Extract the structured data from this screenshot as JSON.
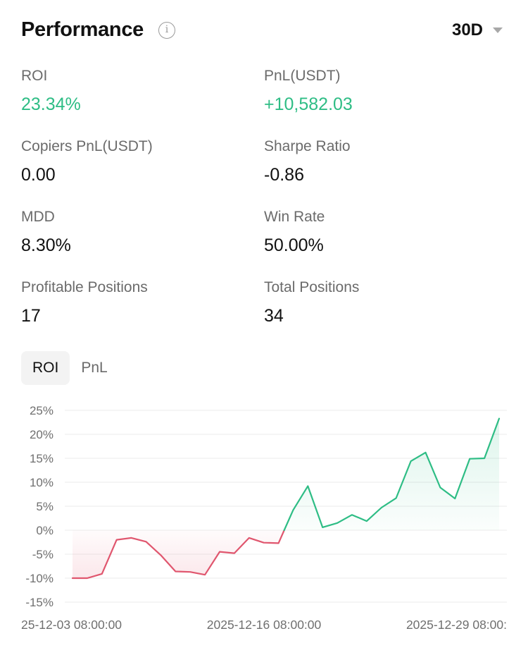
{
  "header": {
    "title": "Performance",
    "info_icon": "info-icon",
    "period": "30D",
    "period_icon": "caret-down-icon"
  },
  "stats": [
    {
      "label": "ROI",
      "value": "23.34%",
      "color": "#2ebd85"
    },
    {
      "label": "PnL(USDT)",
      "value": "+10,582.03",
      "color": "#2ebd85"
    },
    {
      "label": "Copiers PnL(USDT)",
      "value": "0.00"
    },
    {
      "label": "Sharpe Ratio",
      "value": "-0.86"
    },
    {
      "label": "MDD",
      "value": "8.30%"
    },
    {
      "label": "Win Rate",
      "value": "50.00%"
    },
    {
      "label": "Profitable Positions",
      "value": "17"
    },
    {
      "label": "Total Positions",
      "value": "34"
    }
  ],
  "tabs": [
    {
      "label": "ROI",
      "active": true
    },
    {
      "label": "PnL",
      "active": false
    }
  ],
  "chart_data": {
    "type": "area",
    "y_unit": "%",
    "ylim": [
      -15,
      25
    ],
    "yticks": [
      25,
      20,
      15,
      10,
      5,
      0,
      -5,
      -10,
      -15
    ],
    "ytick_labels": [
      "25%",
      "20%",
      "15%",
      "10%",
      "5%",
      "0%",
      "-5%",
      "-10%",
      "-15%"
    ],
    "xtick_labels": [
      "25-12-03 08:00:00",
      "2025-12-16 08:00:00",
      "2025-12-29 08:00:"
    ],
    "grid": true,
    "positive_color": "#2ebd85",
    "negative_color": "#e0566e",
    "series": [
      {
        "values": [
          -10.0,
          -10.0,
          -9.1,
          -2.0,
          -1.6,
          -2.4,
          -5.2,
          -8.6,
          -8.7,
          -9.3,
          -4.5,
          -4.8,
          -1.6,
          -2.6,
          -2.7,
          4.2,
          9.2,
          0.6,
          1.5,
          3.2,
          1.9,
          4.7,
          6.7,
          14.4,
          16.2,
          8.9,
          6.6,
          14.9,
          15.0,
          23.3
        ]
      }
    ]
  }
}
